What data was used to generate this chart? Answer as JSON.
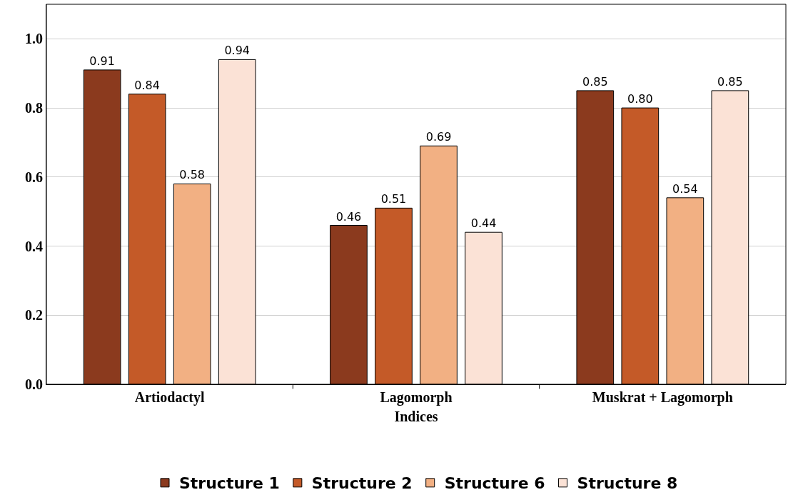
{
  "chart_data": {
    "type": "bar",
    "xlabel": "Indices",
    "categories": [
      "Artiodactyl",
      "Lagomorph",
      "Muskrat + Lagomorph"
    ],
    "series": [
      {
        "name": "Structure 1",
        "color": "#8b3a1e",
        "values": [
          0.91,
          0.46,
          0.85
        ],
        "value_labels": [
          "0.91",
          "0.46",
          "0.85"
        ]
      },
      {
        "name": "Structure 2",
        "color": "#c45a28",
        "values": [
          0.84,
          0.51,
          0.8
        ],
        "value_labels": [
          "0.84",
          "0.51",
          "0.80"
        ]
      },
      {
        "name": "Structure 6",
        "color": "#f2b083",
        "values": [
          0.58,
          0.69,
          0.54
        ],
        "value_labels": [
          "0.58",
          "0.69",
          "0.54"
        ]
      },
      {
        "name": "Structure 8",
        "color": "#fbe2d6",
        "values": [
          0.94,
          0.44,
          0.85
        ],
        "value_labels": [
          "0.94",
          "0.44",
          "0.85"
        ]
      }
    ],
    "ylim": [
      0,
      1.1
    ],
    "yticks": [
      {
        "value": 0,
        "label": "0.0"
      },
      {
        "value": 0.2,
        "label": "0.2"
      },
      {
        "value": 0.4,
        "label": "0.4"
      },
      {
        "value": 0.6,
        "label": "0.6"
      },
      {
        "value": 0.8,
        "label": "0.8"
      },
      {
        "value": 1,
        "label": "1.0"
      }
    ],
    "grid": "y",
    "legend": "bottom"
  }
}
